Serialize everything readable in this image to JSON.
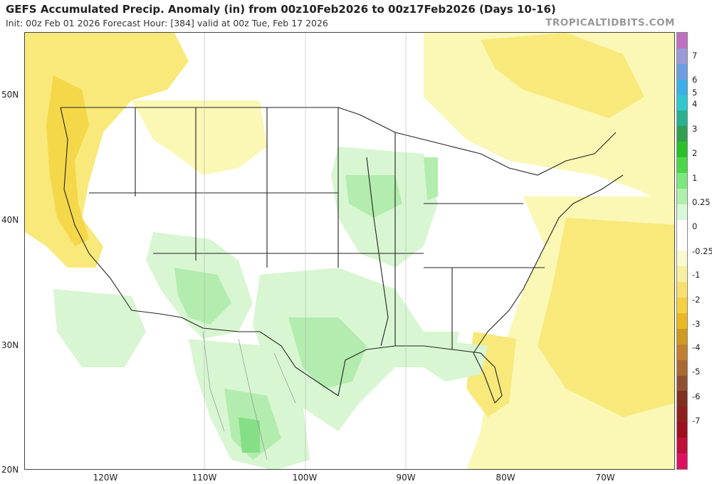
{
  "header": {
    "title": "GEFS Accumulated Precip. Anomaly (in) from 00z10Feb2026 to 00z17Feb2026 (Days 10-16)",
    "subtitle": "Init: 00z Feb 01 2026   Forecast Hour: [384]   valid at 00z Tue, Feb 17 2026",
    "credit": "TROPICALTIDBITS.COM"
  },
  "axes": {
    "lat_labels": [
      "50N",
      "40N",
      "30N",
      "20N"
    ],
    "lon_labels": [
      "120W",
      "110W",
      "100W",
      "90W",
      "80W",
      "70W"
    ]
  },
  "colorbar": {
    "labels": [
      "7",
      "6",
      "5",
      "4",
      "3",
      "2",
      "1",
      "0.25",
      "0",
      "-0.25",
      "-1",
      "-2",
      "-3",
      "-4",
      "-5",
      "-6",
      "-7"
    ],
    "colors": [
      "#c070c0",
      "#9a9ad8",
      "#6a9ee0",
      "#3ab0e8",
      "#30c8d0",
      "#28b090",
      "#30a050",
      "#2ac02a",
      "#4ad84a",
      "#7ae87a",
      "#aef0ae",
      "#d8f8d8",
      "#ffffff",
      "#ffffff",
      "#fafad0",
      "#f8f0a0",
      "#f8e070",
      "#f5d040",
      "#e8b820",
      "#d09a20",
      "#c08030",
      "#a86a30",
      "#905030",
      "#803020",
      "#902020",
      "#a01020",
      "#c0103a",
      "#e01060"
    ]
  },
  "anomaly_palette": {
    "dry_light": "#fbf7b5",
    "dry_mid": "#f8e97a",
    "dry_strong": "#f5d84a",
    "wet_light": "#d8f6d2",
    "wet_mid": "#b2ecae",
    "wet_strong": "#86df86",
    "wet_max": "#5ccf62"
  }
}
